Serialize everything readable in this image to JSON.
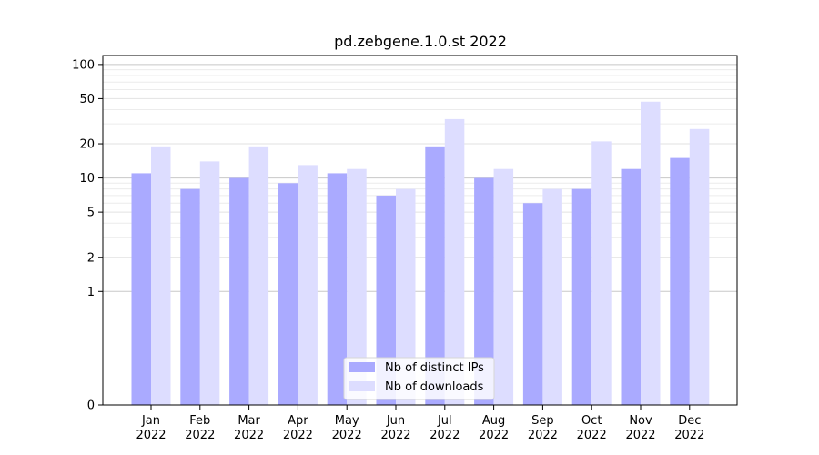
{
  "chart_data": {
    "type": "bar",
    "title": "pd.zebgene.1.0.st 2022",
    "xlabel": "",
    "ylabel": "",
    "y_scale": "symlog",
    "ylim": [
      0,
      120
    ],
    "y_ticks": [
      0,
      1,
      2,
      5,
      10,
      20,
      50,
      100
    ],
    "y_tick_labels": [
      "0",
      "1",
      "2",
      "5",
      "10",
      "20",
      "50",
      "100"
    ],
    "categories": [
      "Jan\n2022",
      "Feb\n2022",
      "Mar\n2022",
      "Apr\n2022",
      "May\n2022",
      "Jun\n2022",
      "Jul\n2022",
      "Aug\n2022",
      "Sep\n2022",
      "Oct\n2022",
      "Nov\n2022",
      "Dec\n2022"
    ],
    "category_lines": [
      [
        "Jan",
        "2022"
      ],
      [
        "Feb",
        "2022"
      ],
      [
        "Mar",
        "2022"
      ],
      [
        "Apr",
        "2022"
      ],
      [
        "May",
        "2022"
      ],
      [
        "Jun",
        "2022"
      ],
      [
        "Jul",
        "2022"
      ],
      [
        "Aug",
        "2022"
      ],
      [
        "Sep",
        "2022"
      ],
      [
        "Oct",
        "2022"
      ],
      [
        "Nov",
        "2022"
      ],
      [
        "Dec",
        "2022"
      ]
    ],
    "series": [
      {
        "name": "Nb of distinct IPs",
        "color": "#aaaaff",
        "values": [
          11,
          8,
          10,
          9,
          11,
          7,
          19,
          10,
          6,
          8,
          12,
          15
        ]
      },
      {
        "name": "Nb of downloads",
        "color": "#ddddff",
        "values": [
          19,
          14,
          19,
          13,
          12,
          8,
          33,
          12,
          8,
          21,
          47,
          27
        ]
      }
    ],
    "grid": true,
    "legend_position": "bottom-center"
  }
}
